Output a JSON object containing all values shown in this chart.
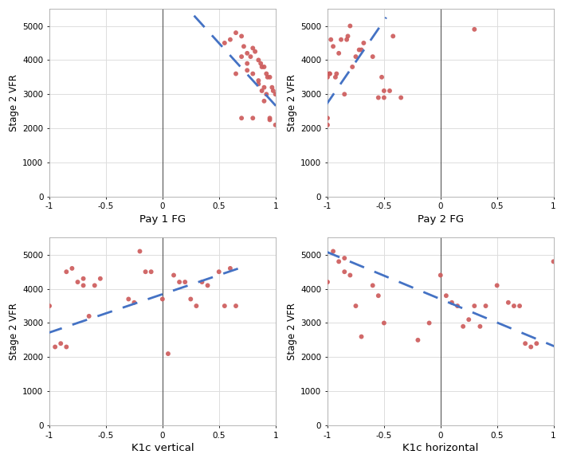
{
  "scatter_color": "#cd5c5c",
  "trend_color": "#4472C4",
  "background": "#ffffff",
  "grid_color": "#dddddd",
  "ylim": [
    0,
    5500
  ],
  "xlim": [
    -1,
    1
  ],
  "yticks": [
    0,
    1000,
    2000,
    3000,
    4000,
    5000
  ],
  "xticks": [
    -1,
    -0.5,
    0,
    0.5,
    1
  ],
  "plot1": {
    "xlabel": "Pay 1 FG",
    "ylabel": "Stage 2 VFR",
    "x": [
      0.55,
      0.6,
      0.65,
      0.7,
      0.72,
      0.75,
      0.78,
      0.8,
      0.82,
      0.85,
      0.87,
      0.88,
      0.9,
      0.92,
      0.93,
      0.95,
      0.97,
      0.98,
      1.0,
      0.75,
      0.8,
      0.85,
      0.9,
      0.95,
      0.7,
      0.75,
      0.85,
      0.9,
      0.95,
      1.0,
      0.65,
      0.7,
      0.8,
      0.88,
      0.92
    ],
    "y": [
      4500,
      4600,
      4800,
      4700,
      4400,
      4200,
      4100,
      4350,
      4250,
      4000,
      3900,
      3800,
      3800,
      3600,
      3500,
      3500,
      3200,
      3100,
      3000,
      3700,
      3600,
      3400,
      3200,
      2250,
      4100,
      3900,
      3300,
      2800,
      2300,
      2100,
      3600,
      2300,
      2300,
      3100,
      3000
    ],
    "trend_x": [
      0.28,
      1.02
    ],
    "trend_y": [
      5300,
      2600
    ]
  },
  "plot2": {
    "xlabel": "Pay 2 FG",
    "ylabel": "Stage 2 VFR",
    "x": [
      -1.0,
      -1.0,
      -1.0,
      -1.0,
      -0.98,
      -0.98,
      -0.97,
      -0.95,
      -0.93,
      -0.92,
      -0.9,
      -0.88,
      -0.85,
      -0.83,
      -0.82,
      -0.8,
      -0.78,
      -0.75,
      -0.72,
      -0.7,
      -0.68,
      -0.6,
      -0.55,
      -0.52,
      -0.5,
      -0.5,
      -0.45,
      -0.42,
      -0.35,
      0.3
    ],
    "y": [
      2100,
      2300,
      3500,
      3600,
      3600,
      3600,
      4600,
      4400,
      3500,
      3600,
      4200,
      4600,
      3000,
      4600,
      4700,
      5000,
      3800,
      4100,
      4300,
      4300,
      4500,
      4100,
      2900,
      3500,
      3100,
      2900,
      3100,
      4700,
      2900,
      4900
    ],
    "trend_x": [
      -1.02,
      -0.48
    ],
    "trend_y": [
      2650,
      5250
    ]
  },
  "plot3": {
    "xlabel": "K1c vertical",
    "ylabel": "Stage 2 VFR",
    "x": [
      -1.0,
      -0.95,
      -0.9,
      -0.85,
      -0.85,
      -0.8,
      -0.75,
      -0.7,
      -0.7,
      -0.65,
      -0.6,
      -0.55,
      -0.3,
      -0.25,
      -0.2,
      -0.15,
      -0.1,
      0.0,
      0.05,
      0.1,
      0.15,
      0.2,
      0.25,
      0.3,
      0.35,
      0.4,
      0.5,
      0.55,
      0.6,
      0.65
    ],
    "y": [
      3500,
      2300,
      2400,
      2300,
      4500,
      4600,
      4200,
      4300,
      4100,
      3200,
      4100,
      4300,
      3700,
      3600,
      5100,
      4500,
      4500,
      3700,
      2100,
      4400,
      4200,
      4200,
      3700,
      3500,
      4200,
      4100,
      4500,
      3500,
      4600,
      3500
    ],
    "trend_x": [
      -1.02,
      0.72
    ],
    "trend_y": [
      2700,
      4650
    ]
  },
  "plot4": {
    "xlabel": "K1c horizontal",
    "ylabel": "Stage 2 VFR",
    "x": [
      -1.0,
      -0.95,
      -0.9,
      -0.85,
      -0.85,
      -0.8,
      -0.75,
      -0.7,
      -0.6,
      -0.55,
      -0.5,
      -0.2,
      -0.1,
      0.0,
      0.05,
      0.1,
      0.15,
      0.2,
      0.25,
      0.3,
      0.35,
      0.4,
      0.5,
      0.6,
      0.65,
      0.7,
      0.75,
      0.8,
      0.85,
      1.0
    ],
    "y": [
      4200,
      5100,
      4800,
      4500,
      4900,
      4400,
      3500,
      2600,
      4100,
      3800,
      3000,
      2500,
      3000,
      4400,
      3800,
      3600,
      3500,
      2900,
      3100,
      3500,
      2900,
      3500,
      4100,
      3600,
      3500,
      3500,
      2400,
      2300,
      2400,
      4800
    ],
    "trend_x": [
      -1.02,
      1.02
    ],
    "trend_y": [
      5100,
      2300
    ]
  }
}
